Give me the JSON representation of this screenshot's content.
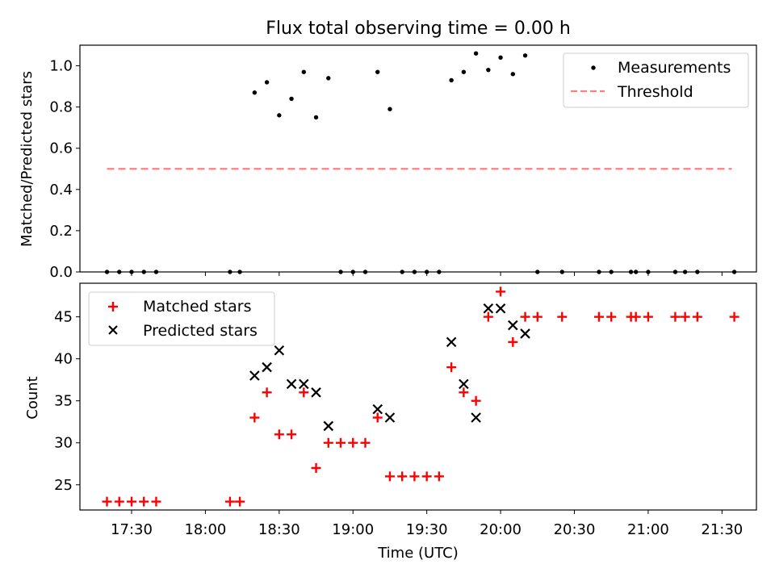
{
  "chart_data": {
    "type": "scatter",
    "title": "Flux total observing time = 0.00 h",
    "xlabel": "Time (UTC)",
    "x_ticks": [
      "17:30",
      "18:00",
      "18:30",
      "19:00",
      "19:30",
      "20:00",
      "20:30",
      "21:00",
      "21:30"
    ],
    "xlim": [
      "17:09",
      "21:44"
    ],
    "top_panel": {
      "ylabel": "Matched/Predicted stars",
      "ylim": [
        0,
        1.1
      ],
      "y_ticks": [
        "0.0",
        "0.2",
        "0.4",
        "0.6",
        "0.8",
        "1.0"
      ],
      "legend_position": "upper right",
      "series": [
        {
          "name": "Measurements",
          "marker": "dot",
          "color": "#000000",
          "points": [
            {
              "x": "17:20",
              "y": 0
            },
            {
              "x": "17:25",
              "y": 0
            },
            {
              "x": "17:30",
              "y": 0
            },
            {
              "x": "17:35",
              "y": 0
            },
            {
              "x": "17:40",
              "y": 0
            },
            {
              "x": "18:10",
              "y": 0
            },
            {
              "x": "18:14",
              "y": 0
            },
            {
              "x": "18:20",
              "y": 0.87
            },
            {
              "x": "18:25",
              "y": 0.92
            },
            {
              "x": "18:30",
              "y": 0.76
            },
            {
              "x": "18:35",
              "y": 0.84
            },
            {
              "x": "18:40",
              "y": 0.97
            },
            {
              "x": "18:45",
              "y": 0.75
            },
            {
              "x": "18:50",
              "y": 0.94
            },
            {
              "x": "18:55",
              "y": 0
            },
            {
              "x": "19:00",
              "y": 0
            },
            {
              "x": "19:05",
              "y": 0
            },
            {
              "x": "19:10",
              "y": 0.97
            },
            {
              "x": "19:15",
              "y": 0.79
            },
            {
              "x": "19:20",
              "y": 0
            },
            {
              "x": "19:25",
              "y": 0
            },
            {
              "x": "19:30",
              "y": 0
            },
            {
              "x": "19:35",
              "y": 0
            },
            {
              "x": "19:40",
              "y": 0.93
            },
            {
              "x": "19:45",
              "y": 0.97
            },
            {
              "x": "19:50",
              "y": 1.06
            },
            {
              "x": "19:55",
              "y": 0.98
            },
            {
              "x": "20:00",
              "y": 1.04
            },
            {
              "x": "20:05",
              "y": 0.96
            },
            {
              "x": "20:10",
              "y": 1.05
            },
            {
              "x": "20:15",
              "y": 0
            },
            {
              "x": "20:25",
              "y": 0
            },
            {
              "x": "20:40",
              "y": 0
            },
            {
              "x": "20:45",
              "y": 0
            },
            {
              "x": "20:53",
              "y": 0
            },
            {
              "x": "20:55",
              "y": 0
            },
            {
              "x": "21:00",
              "y": 0
            },
            {
              "x": "21:11",
              "y": 0
            },
            {
              "x": "21:15",
              "y": 0
            },
            {
              "x": "21:20",
              "y": 0
            },
            {
              "x": "21:35",
              "y": 0
            }
          ]
        },
        {
          "name": "Threshold",
          "marker": "dashed-line",
          "color": "#ff7f7f",
          "points": [
            {
              "x": "17:20",
              "y": 0.5
            },
            {
              "x": "21:34",
              "y": 0.5
            }
          ]
        }
      ]
    },
    "bottom_panel": {
      "ylabel": "Count",
      "ylim": [
        22,
        49
      ],
      "y_ticks": [
        "25",
        "30",
        "35",
        "40",
        "45"
      ],
      "legend_position": "upper left",
      "series": [
        {
          "name": "Matched stars",
          "marker": "plus",
          "color": "#ff0000",
          "points": [
            {
              "x": "17:20",
              "y": 23
            },
            {
              "x": "17:25",
              "y": 23
            },
            {
              "x": "17:30",
              "y": 23
            },
            {
              "x": "17:35",
              "y": 23
            },
            {
              "x": "17:40",
              "y": 23
            },
            {
              "x": "18:10",
              "y": 23
            },
            {
              "x": "18:14",
              "y": 23
            },
            {
              "x": "18:20",
              "y": 33
            },
            {
              "x": "18:25",
              "y": 36
            },
            {
              "x": "18:30",
              "y": 31
            },
            {
              "x": "18:35",
              "y": 31
            },
            {
              "x": "18:40",
              "y": 36
            },
            {
              "x": "18:45",
              "y": 27
            },
            {
              "x": "18:50",
              "y": 30
            },
            {
              "x": "18:55",
              "y": 30
            },
            {
              "x": "19:00",
              "y": 30
            },
            {
              "x": "19:05",
              "y": 30
            },
            {
              "x": "19:10",
              "y": 33
            },
            {
              "x": "19:15",
              "y": 26
            },
            {
              "x": "19:20",
              "y": 26
            },
            {
              "x": "19:25",
              "y": 26
            },
            {
              "x": "19:30",
              "y": 26
            },
            {
              "x": "19:35",
              "y": 26
            },
            {
              "x": "19:40",
              "y": 39
            },
            {
              "x": "19:45",
              "y": 36
            },
            {
              "x": "19:50",
              "y": 35
            },
            {
              "x": "19:55",
              "y": 45
            },
            {
              "x": "20:00",
              "y": 48
            },
            {
              "x": "20:05",
              "y": 42
            },
            {
              "x": "20:10",
              "y": 45
            },
            {
              "x": "20:15",
              "y": 45
            },
            {
              "x": "20:25",
              "y": 45
            },
            {
              "x": "20:40",
              "y": 45
            },
            {
              "x": "20:45",
              "y": 45
            },
            {
              "x": "20:53",
              "y": 45
            },
            {
              "x": "20:55",
              "y": 45
            },
            {
              "x": "21:00",
              "y": 45
            },
            {
              "x": "21:11",
              "y": 45
            },
            {
              "x": "21:15",
              "y": 45
            },
            {
              "x": "21:20",
              "y": 45
            },
            {
              "x": "21:35",
              "y": 45
            }
          ]
        },
        {
          "name": "Predicted stars",
          "marker": "x",
          "color": "#000000",
          "points": [
            {
              "x": "18:20",
              "y": 38
            },
            {
              "x": "18:25",
              "y": 39
            },
            {
              "x": "18:30",
              "y": 41
            },
            {
              "x": "18:35",
              "y": 37
            },
            {
              "x": "18:40",
              "y": 37
            },
            {
              "x": "18:45",
              "y": 36
            },
            {
              "x": "18:50",
              "y": 32
            },
            {
              "x": "19:10",
              "y": 34
            },
            {
              "x": "19:15",
              "y": 33
            },
            {
              "x": "19:40",
              "y": 42
            },
            {
              "x": "19:45",
              "y": 37
            },
            {
              "x": "19:50",
              "y": 33
            },
            {
              "x": "19:55",
              "y": 46
            },
            {
              "x": "20:00",
              "y": 46
            },
            {
              "x": "20:05",
              "y": 44
            },
            {
              "x": "20:10",
              "y": 43
            }
          ]
        }
      ]
    }
  }
}
